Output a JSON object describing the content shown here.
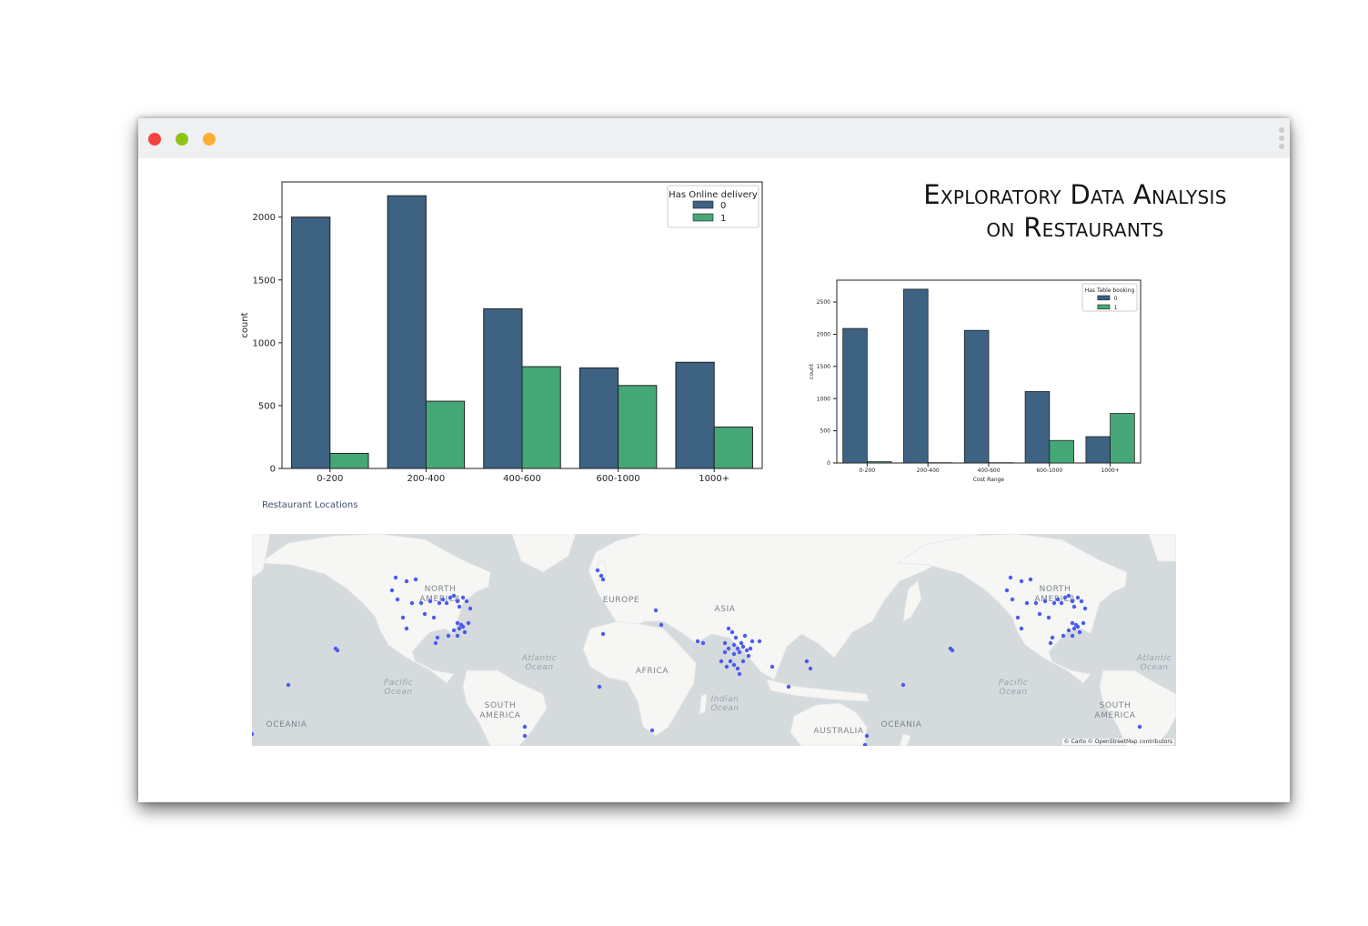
{
  "window": {
    "controls": [
      {
        "name": "close",
        "color": "#f5433e"
      },
      {
        "name": "minimize",
        "color": "#8fc316"
      },
      {
        "name": "maximize",
        "color": "#fbae33"
      }
    ]
  },
  "title": {
    "line1": "Exploratory Data Analysis",
    "line2": "on Restaurants"
  },
  "chart_data": [
    {
      "type": "bar",
      "categories": [
        "0-200",
        "200-400",
        "400-600",
        "600-1000",
        "1000+"
      ],
      "series": [
        {
          "name": "0",
          "values": [
            2000,
            2170,
            1270,
            800,
            845
          ],
          "color": "#3d6282"
        },
        {
          "name": "1",
          "values": [
            120,
            535,
            810,
            660,
            330
          ],
          "color": "#45a777"
        }
      ],
      "legend_title": "Has Online delivery",
      "legend_position": "top-right",
      "xlabel": "",
      "ylabel": "count",
      "yticks": [
        0,
        500,
        1000,
        1500,
        2000
      ],
      "ylim": [
        0,
        2280
      ],
      "grid": false
    },
    {
      "type": "bar",
      "categories": [
        "0-200",
        "200-400",
        "400-600",
        "600-1000",
        "1000+"
      ],
      "series": [
        {
          "name": "0",
          "values": [
            2090,
            2700,
            2060,
            1110,
            410
          ],
          "color": "#3d6282"
        },
        {
          "name": "1",
          "values": [
            20,
            5,
            5,
            350,
            770
          ],
          "color": "#45a777"
        }
      ],
      "legend_title": "Has Table booking",
      "legend_position": "top-right",
      "xlabel": "Cost Range",
      "ylabel": "count",
      "yticks": [
        0,
        500,
        1000,
        1500,
        2000,
        2500
      ],
      "ylim": [
        0,
        2840
      ],
      "grid": false
    }
  ],
  "map": {
    "title": "Restaurant Locations",
    "attribution": "© Carto © OpenStreetMap contributors",
    "labels": {
      "north_america": "NORTH",
      "north_america_2": "AMERICA",
      "europe": "EUROPE",
      "asia": "ASIA",
      "africa": "AFRICA",
      "south_america": "SOUTH",
      "south_america_2": "AMERICA",
      "oceania": "OCEANIA",
      "australia": "AUSTRALIA",
      "atlantic": "Atlantic",
      "atlantic_2": "Ocean",
      "pacific": "Pacific",
      "pacific_2": "Ocean",
      "indian": "Indian",
      "indian_2": "Ocean"
    },
    "colors": {
      "land": "#f6f6f4",
      "water": "#d5dadd",
      "point": "#4a5bf0"
    }
  }
}
